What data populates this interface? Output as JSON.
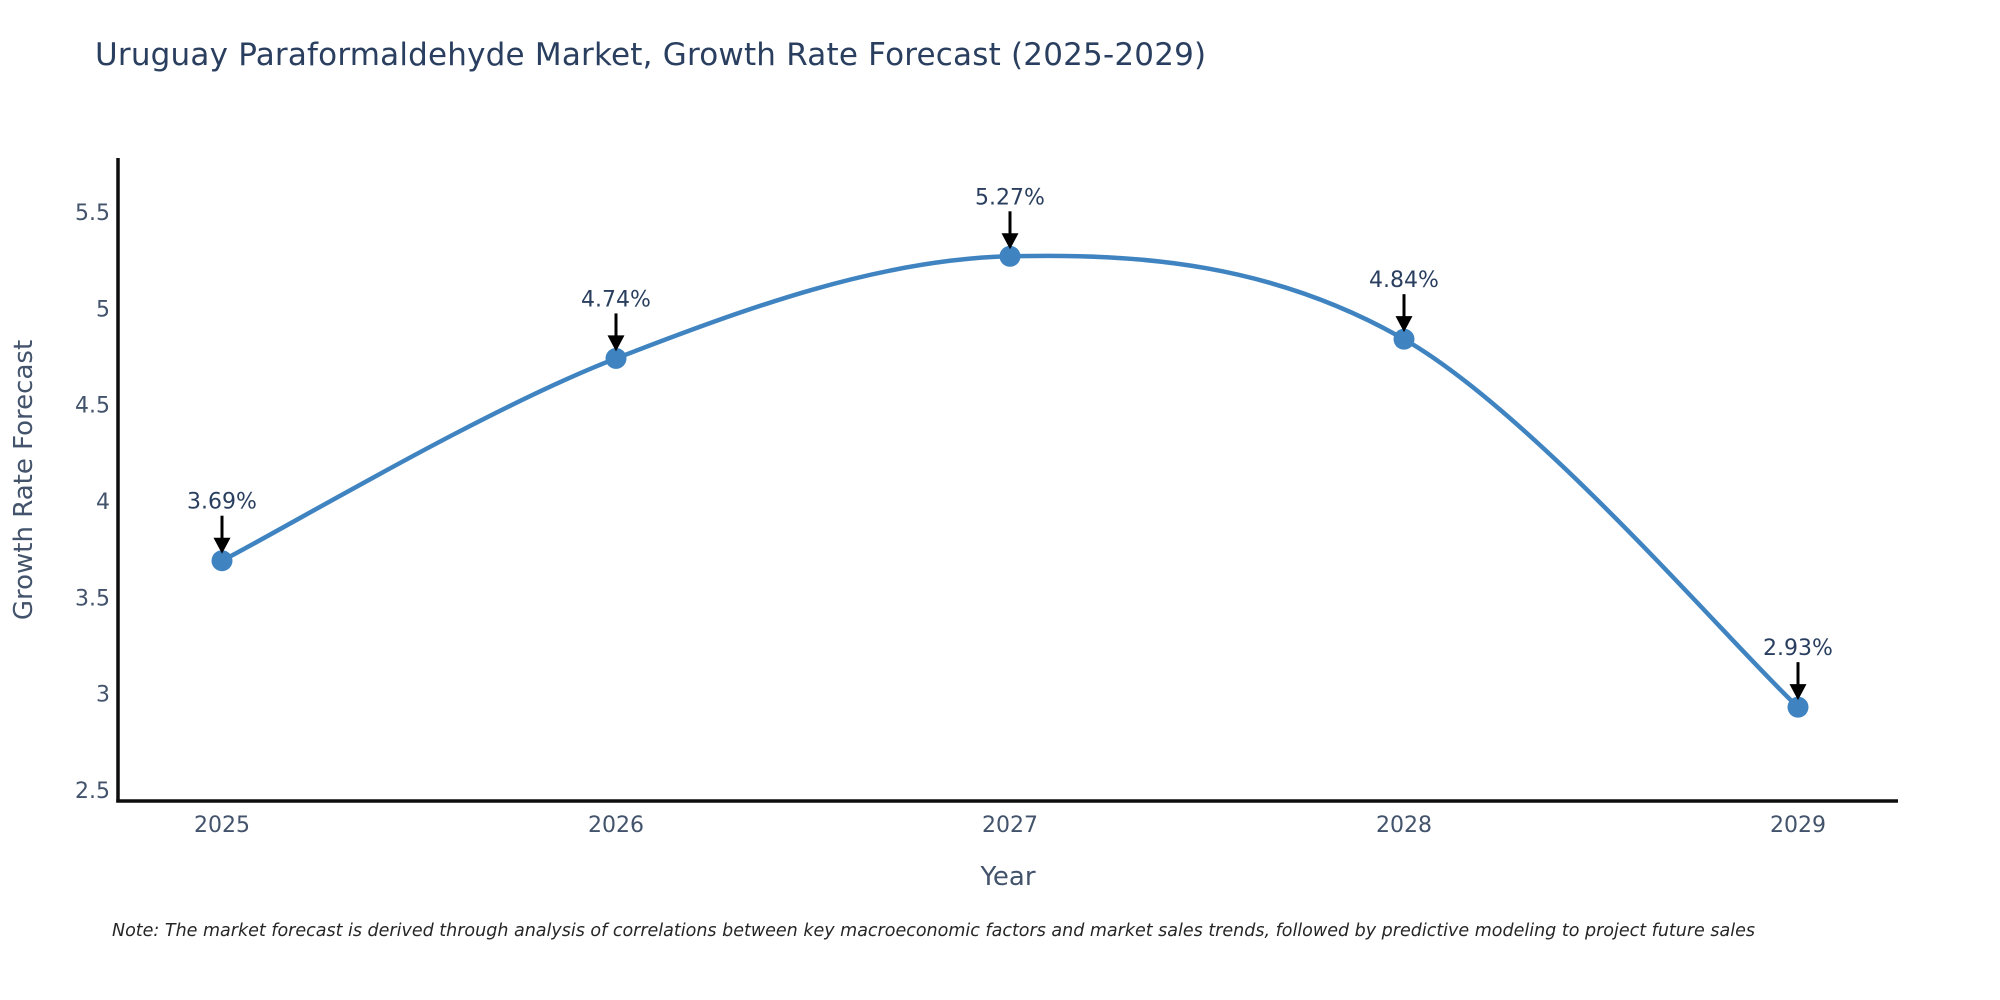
{
  "title": "Uruguay Paraformaldehyde Market, Growth Rate Forecast (2025-2029)",
  "note": "Note: The market forecast is derived through analysis of correlations between key macroeconomic factors and market sales trends, followed by predictive modeling to project future sales",
  "chart_data": {
    "type": "line",
    "title": "Uruguay Paraformaldehyde Market, Growth Rate Forecast (2025-2029)",
    "x": [
      2025,
      2026,
      2027,
      2028,
      2029
    ],
    "x_tick_labels": [
      "2025",
      "2026",
      "2027",
      "2028",
      "2029"
    ],
    "series": [
      {
        "name": "Growth Rate Forecast",
        "values": [
          3.69,
          4.74,
          5.27,
          4.84,
          2.93
        ],
        "point_labels": [
          "3.69%",
          "4.74%",
          "5.27%",
          "4.84%",
          "2.93%"
        ]
      }
    ],
    "xlabel": "Year",
    "ylabel": "Growth Rate Forecast",
    "ylim": [
      2.5,
      5.5
    ],
    "yticks": [
      2.5,
      3,
      3.5,
      4,
      4.5,
      5,
      5.5
    ],
    "ytick_labels": [
      "2.5",
      "3",
      "3.5",
      "4",
      "4.5",
      "5",
      "5.5"
    ],
    "line_shape": "spline",
    "grid": false,
    "legend_position": "none",
    "annotations": "arrow-down-to-point"
  },
  "colors": {
    "background": "#ffffff",
    "title_text": "#2a3f5f",
    "axis_text": "#42536b",
    "axis_line": "#0d0d0d",
    "series_line": "#3f84c1",
    "marker_fill": "#3f84c1",
    "annotation_text": "#2a3f5f",
    "annotation_arrow": "#000000",
    "note_text": "#262626"
  }
}
